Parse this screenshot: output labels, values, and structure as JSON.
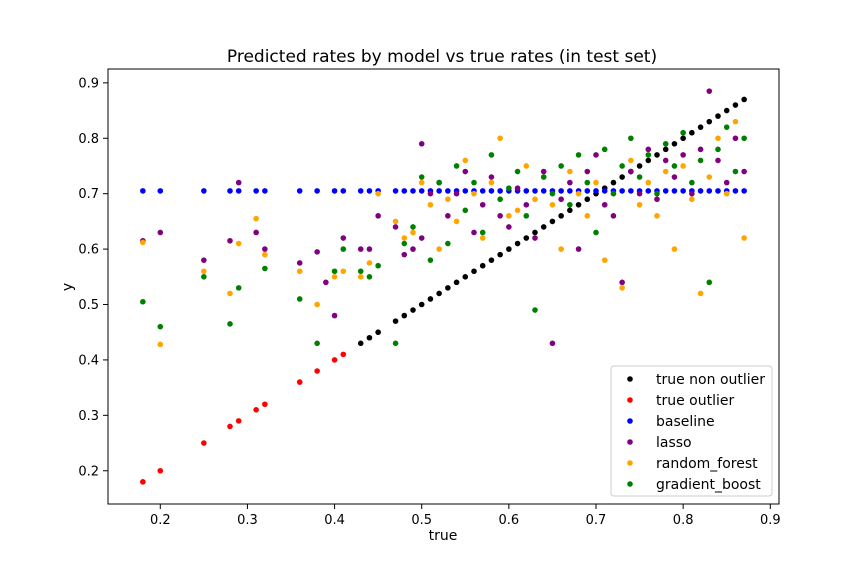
{
  "chart_data": {
    "type": "scatter",
    "title": "Predicted rates by model vs true rates (in test set)",
    "xlabel": "true",
    "ylabel": "y",
    "xlim": [
      0.14,
      0.91
    ],
    "ylim": [
      0.14,
      0.925
    ],
    "xticks": [
      0.2,
      0.3,
      0.4,
      0.5,
      0.6,
      0.7,
      0.8,
      0.9
    ],
    "yticks": [
      0.2,
      0.3,
      0.4,
      0.5,
      0.6,
      0.7,
      0.8,
      0.9
    ],
    "grid": false,
    "legend_position": "lower-right",
    "series": [
      {
        "name": "true non outlier",
        "color": "#000000",
        "points": [
          [
            0.43,
            0.43
          ],
          [
            0.44,
            0.44
          ],
          [
            0.45,
            0.45
          ],
          [
            0.47,
            0.47
          ],
          [
            0.48,
            0.48
          ],
          [
            0.49,
            0.49
          ],
          [
            0.5,
            0.5
          ],
          [
            0.51,
            0.51
          ],
          [
            0.52,
            0.52
          ],
          [
            0.53,
            0.53
          ],
          [
            0.54,
            0.54
          ],
          [
            0.55,
            0.55
          ],
          [
            0.56,
            0.56
          ],
          [
            0.57,
            0.57
          ],
          [
            0.58,
            0.58
          ],
          [
            0.59,
            0.59
          ],
          [
            0.6,
            0.6
          ],
          [
            0.61,
            0.61
          ],
          [
            0.62,
            0.62
          ],
          [
            0.63,
            0.63
          ],
          [
            0.64,
            0.64
          ],
          [
            0.65,
            0.65
          ],
          [
            0.66,
            0.66
          ],
          [
            0.67,
            0.67
          ],
          [
            0.68,
            0.68
          ],
          [
            0.69,
            0.69
          ],
          [
            0.7,
            0.7
          ],
          [
            0.71,
            0.71
          ],
          [
            0.72,
            0.72
          ],
          [
            0.73,
            0.73
          ],
          [
            0.74,
            0.74
          ],
          [
            0.75,
            0.75
          ],
          [
            0.76,
            0.76
          ],
          [
            0.77,
            0.77
          ],
          [
            0.78,
            0.78
          ],
          [
            0.79,
            0.79
          ],
          [
            0.8,
            0.8
          ],
          [
            0.81,
            0.81
          ],
          [
            0.82,
            0.82
          ],
          [
            0.83,
            0.83
          ],
          [
            0.84,
            0.84
          ],
          [
            0.85,
            0.85
          ],
          [
            0.86,
            0.86
          ],
          [
            0.87,
            0.87
          ]
        ]
      },
      {
        "name": "true outlier",
        "color": "#ff0000",
        "points": [
          [
            0.18,
            0.18
          ],
          [
            0.2,
            0.2
          ],
          [
            0.25,
            0.25
          ],
          [
            0.28,
            0.28
          ],
          [
            0.29,
            0.29
          ],
          [
            0.31,
            0.31
          ],
          [
            0.32,
            0.32
          ],
          [
            0.36,
            0.36
          ],
          [
            0.38,
            0.38
          ],
          [
            0.4,
            0.4
          ],
          [
            0.41,
            0.41
          ]
        ]
      },
      {
        "name": "baseline",
        "color": "#0000ff",
        "points": [
          [
            0.18,
            0.705
          ],
          [
            0.2,
            0.705
          ],
          [
            0.25,
            0.705
          ],
          [
            0.28,
            0.705
          ],
          [
            0.29,
            0.705
          ],
          [
            0.31,
            0.705
          ],
          [
            0.32,
            0.705
          ],
          [
            0.36,
            0.705
          ],
          [
            0.38,
            0.705
          ],
          [
            0.4,
            0.705
          ],
          [
            0.41,
            0.705
          ],
          [
            0.43,
            0.705
          ],
          [
            0.44,
            0.705
          ],
          [
            0.45,
            0.705
          ],
          [
            0.47,
            0.705
          ],
          [
            0.48,
            0.705
          ],
          [
            0.49,
            0.705
          ],
          [
            0.5,
            0.705
          ],
          [
            0.51,
            0.705
          ],
          [
            0.52,
            0.705
          ],
          [
            0.53,
            0.705
          ],
          [
            0.54,
            0.705
          ],
          [
            0.55,
            0.705
          ],
          [
            0.56,
            0.705
          ],
          [
            0.57,
            0.705
          ],
          [
            0.58,
            0.705
          ],
          [
            0.59,
            0.705
          ],
          [
            0.6,
            0.705
          ],
          [
            0.61,
            0.705
          ],
          [
            0.62,
            0.705
          ],
          [
            0.63,
            0.705
          ],
          [
            0.64,
            0.705
          ],
          [
            0.65,
            0.705
          ],
          [
            0.66,
            0.705
          ],
          [
            0.67,
            0.705
          ],
          [
            0.68,
            0.705
          ],
          [
            0.69,
            0.705
          ],
          [
            0.7,
            0.705
          ],
          [
            0.71,
            0.705
          ],
          [
            0.72,
            0.705
          ],
          [
            0.73,
            0.705
          ],
          [
            0.74,
            0.705
          ],
          [
            0.75,
            0.705
          ],
          [
            0.76,
            0.705
          ],
          [
            0.77,
            0.705
          ],
          [
            0.78,
            0.705
          ],
          [
            0.79,
            0.705
          ],
          [
            0.8,
            0.705
          ],
          [
            0.81,
            0.705
          ],
          [
            0.82,
            0.705
          ],
          [
            0.83,
            0.705
          ],
          [
            0.84,
            0.705
          ],
          [
            0.85,
            0.705
          ],
          [
            0.86,
            0.705
          ],
          [
            0.87,
            0.705
          ]
        ]
      },
      {
        "name": "lasso",
        "color": "#800080",
        "points": [
          [
            0.18,
            0.615
          ],
          [
            0.2,
            0.63
          ],
          [
            0.25,
            0.58
          ],
          [
            0.28,
            0.615
          ],
          [
            0.29,
            0.72
          ],
          [
            0.31,
            0.63
          ],
          [
            0.32,
            0.6
          ],
          [
            0.36,
            0.575
          ],
          [
            0.38,
            0.595
          ],
          [
            0.39,
            0.54
          ],
          [
            0.4,
            0.48
          ],
          [
            0.41,
            0.62
          ],
          [
            0.43,
            0.6
          ],
          [
            0.44,
            0.6
          ],
          [
            0.45,
            0.66
          ],
          [
            0.47,
            0.64
          ],
          [
            0.48,
            0.59
          ],
          [
            0.49,
            0.6
          ],
          [
            0.5,
            0.79
          ],
          [
            0.5,
            0.62
          ],
          [
            0.51,
            0.7
          ],
          [
            0.52,
            0.72
          ],
          [
            0.53,
            0.66
          ],
          [
            0.54,
            0.7
          ],
          [
            0.55,
            0.74
          ],
          [
            0.56,
            0.63
          ],
          [
            0.57,
            0.68
          ],
          [
            0.58,
            0.73
          ],
          [
            0.59,
            0.66
          ],
          [
            0.6,
            0.64
          ],
          [
            0.61,
            0.71
          ],
          [
            0.62,
            0.68
          ],
          [
            0.63,
            0.62
          ],
          [
            0.64,
            0.74
          ],
          [
            0.65,
            0.43
          ],
          [
            0.66,
            0.69
          ],
          [
            0.67,
            0.72
          ],
          [
            0.68,
            0.6
          ],
          [
            0.69,
            0.74
          ],
          [
            0.7,
            0.77
          ],
          [
            0.71,
            0.68
          ],
          [
            0.72,
            0.66
          ],
          [
            0.73,
            0.54
          ],
          [
            0.74,
            0.74
          ],
          [
            0.75,
            0.7
          ],
          [
            0.76,
            0.78
          ],
          [
            0.77,
            0.69
          ],
          [
            0.78,
            0.76
          ],
          [
            0.79,
            0.73
          ],
          [
            0.8,
            0.77
          ],
          [
            0.81,
            0.7
          ],
          [
            0.82,
            0.78
          ],
          [
            0.83,
            0.885
          ],
          [
            0.84,
            0.76
          ],
          [
            0.85,
            0.72
          ],
          [
            0.86,
            0.8
          ],
          [
            0.87,
            0.74
          ]
        ]
      },
      {
        "name": "random_forest",
        "color": "#ffa500",
        "points": [
          [
            0.18,
            0.612
          ],
          [
            0.2,
            0.428
          ],
          [
            0.25,
            0.56
          ],
          [
            0.28,
            0.52
          ],
          [
            0.29,
            0.61
          ],
          [
            0.31,
            0.655
          ],
          [
            0.32,
            0.59
          ],
          [
            0.36,
            0.56
          ],
          [
            0.38,
            0.5
          ],
          [
            0.4,
            0.55
          ],
          [
            0.41,
            0.56
          ],
          [
            0.43,
            0.55
          ],
          [
            0.44,
            0.575
          ],
          [
            0.45,
            0.7
          ],
          [
            0.47,
            0.65
          ],
          [
            0.48,
            0.62
          ],
          [
            0.49,
            0.63
          ],
          [
            0.5,
            0.72
          ],
          [
            0.51,
            0.68
          ],
          [
            0.52,
            0.6
          ],
          [
            0.53,
            0.69
          ],
          [
            0.54,
            0.65
          ],
          [
            0.55,
            0.76
          ],
          [
            0.56,
            0.7
          ],
          [
            0.57,
            0.62
          ],
          [
            0.58,
            0.72
          ],
          [
            0.59,
            0.8
          ],
          [
            0.6,
            0.66
          ],
          [
            0.61,
            0.67
          ],
          [
            0.62,
            0.75
          ],
          [
            0.63,
            0.69
          ],
          [
            0.64,
            0.73
          ],
          [
            0.65,
            0.68
          ],
          [
            0.66,
            0.6
          ],
          [
            0.67,
            0.74
          ],
          [
            0.68,
            0.7
          ],
          [
            0.69,
            0.66
          ],
          [
            0.7,
            0.72
          ],
          [
            0.71,
            0.58
          ],
          [
            0.72,
            0.7
          ],
          [
            0.73,
            0.53
          ],
          [
            0.74,
            0.76
          ],
          [
            0.75,
            0.68
          ],
          [
            0.76,
            0.72
          ],
          [
            0.77,
            0.66
          ],
          [
            0.78,
            0.74
          ],
          [
            0.79,
            0.6
          ],
          [
            0.8,
            0.75
          ],
          [
            0.81,
            0.69
          ],
          [
            0.82,
            0.52
          ],
          [
            0.83,
            0.73
          ],
          [
            0.84,
            0.8
          ],
          [
            0.85,
            0.7
          ],
          [
            0.86,
            0.83
          ],
          [
            0.87,
            0.62
          ]
        ]
      },
      {
        "name": "gradient_boost",
        "color": "#008000",
        "points": [
          [
            0.18,
            0.505
          ],
          [
            0.2,
            0.46
          ],
          [
            0.25,
            0.55
          ],
          [
            0.28,
            0.465
          ],
          [
            0.29,
            0.53
          ],
          [
            0.32,
            0.565
          ],
          [
            0.36,
            0.51
          ],
          [
            0.38,
            0.43
          ],
          [
            0.4,
            0.56
          ],
          [
            0.41,
            0.6
          ],
          [
            0.43,
            0.56
          ],
          [
            0.44,
            0.55
          ],
          [
            0.45,
            0.57
          ],
          [
            0.47,
            0.43
          ],
          [
            0.48,
            0.61
          ],
          [
            0.49,
            0.64
          ],
          [
            0.5,
            0.73
          ],
          [
            0.51,
            0.58
          ],
          [
            0.52,
            0.72
          ],
          [
            0.53,
            0.61
          ],
          [
            0.54,
            0.75
          ],
          [
            0.55,
            0.67
          ],
          [
            0.56,
            0.72
          ],
          [
            0.57,
            0.63
          ],
          [
            0.58,
            0.77
          ],
          [
            0.59,
            0.69
          ],
          [
            0.6,
            0.71
          ],
          [
            0.61,
            0.74
          ],
          [
            0.62,
            0.66
          ],
          [
            0.63,
            0.49
          ],
          [
            0.64,
            0.73
          ],
          [
            0.65,
            0.7
          ],
          [
            0.66,
            0.75
          ],
          [
            0.67,
            0.68
          ],
          [
            0.68,
            0.77
          ],
          [
            0.69,
            0.72
          ],
          [
            0.7,
            0.63
          ],
          [
            0.71,
            0.78
          ],
          [
            0.72,
            0.7
          ],
          [
            0.73,
            0.75
          ],
          [
            0.74,
            0.8
          ],
          [
            0.75,
            0.73
          ],
          [
            0.76,
            0.77
          ],
          [
            0.77,
            0.7
          ],
          [
            0.78,
            0.79
          ],
          [
            0.79,
            0.75
          ],
          [
            0.8,
            0.81
          ],
          [
            0.81,
            0.72
          ],
          [
            0.82,
            0.76
          ],
          [
            0.83,
            0.54
          ],
          [
            0.84,
            0.78
          ],
          [
            0.85,
            0.82
          ],
          [
            0.86,
            0.74
          ],
          [
            0.87,
            0.8
          ]
        ]
      }
    ]
  }
}
